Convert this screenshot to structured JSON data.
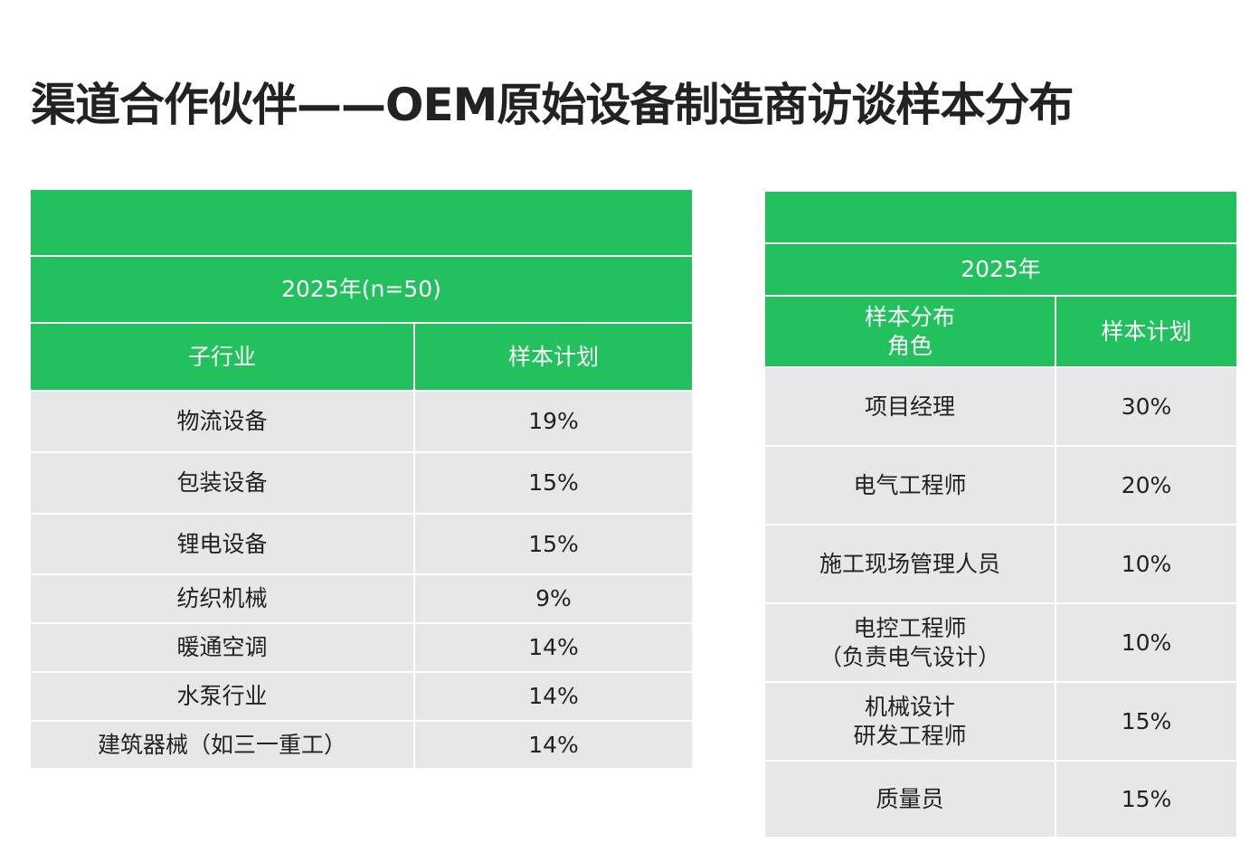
{
  "header": {
    "title": "渠道合作伙伴——OEM原始设备制造商访谈样本分布"
  },
  "left_table": {
    "caption": "2025年(n=50)",
    "columns": [
      "子行业",
      "样本计划"
    ],
    "rows": [
      [
        "物流设备",
        "19%"
      ],
      [
        "包装设备",
        "15%"
      ],
      [
        "锂电设备",
        "15%"
      ],
      [
        "纺织机械",
        "9%"
      ],
      [
        "暖通空调",
        "14%"
      ],
      [
        "水泵行业",
        "14%"
      ],
      [
        "建筑器械（如三一重工）",
        "14%"
      ]
    ]
  },
  "right_table": {
    "caption": "2025年",
    "columns": [
      "样本分布\n角色",
      "样本计划"
    ],
    "rows": [
      [
        "项目经理",
        "30%"
      ],
      [
        "电气工程师",
        "20%"
      ],
      [
        "施工现场管理人员",
        "10%"
      ],
      [
        "电控工程师\n（负责电气设计）",
        "10%"
      ],
      [
        "机械设计\n研发工程师",
        "15%"
      ],
      [
        "质量员",
        "15%"
      ]
    ]
  }
}
